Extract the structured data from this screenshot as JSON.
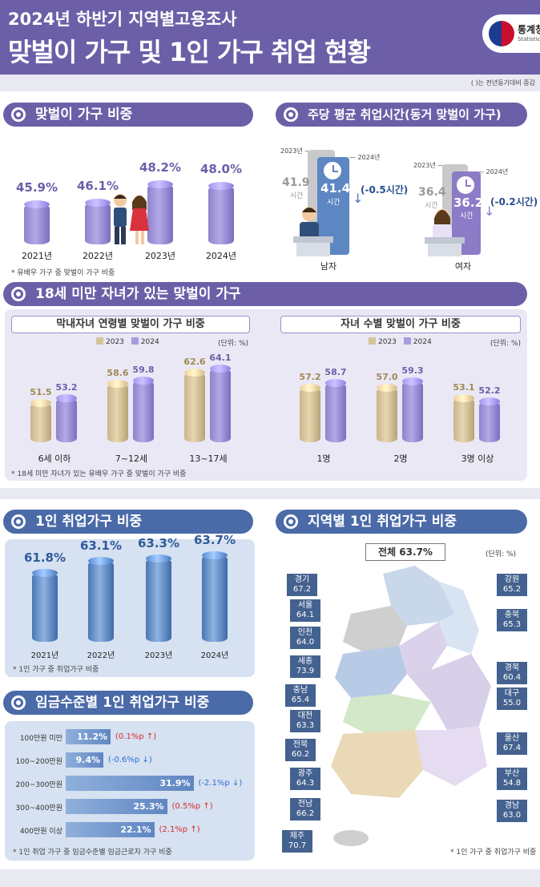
{
  "header": {
    "subtitle": "2024년 하반기 지역별고용조사",
    "title": "맞벌이 가구 및 1인 가구 취업 현황",
    "logo_text": "통계청",
    "logo_sub": "Statistics Korea",
    "note": "(  )는 전년동기대비 증감"
  },
  "dual_share": {
    "title": "맞벌이 가구 비중",
    "note": "* 유배우 가구 중 맞벌이 가구 비중",
    "chart_data": {
      "type": "bar",
      "categories": [
        "2021년",
        "2022년",
        "2023년",
        "2024년"
      ],
      "values": [
        45.9,
        46.1,
        48.2,
        48.0
      ],
      "labels": [
        "45.9%",
        "46.1%",
        "48.2%",
        "48.0%"
      ],
      "ylabel": "%"
    }
  },
  "work_hours": {
    "title": "주당 평균 취업시간(동거 맞벌이 가구)",
    "male": {
      "label": "남자",
      "y2023": "41.9",
      "y2024": "41.4",
      "unit": "시간",
      "change": "(-0.5시간)"
    },
    "female": {
      "label": "여자",
      "y2023": "36.4",
      "y2024": "36.2",
      "unit": "시간",
      "change": "(-0.2시간)"
    },
    "year_prev": "2023년",
    "year_curr": "2024년"
  },
  "kids": {
    "title": "18세 미만 자녀가 있는 맞벌이 가구",
    "age_title": "막내자녀 연령별 맞벌이 가구 비중",
    "count_title": "자녀 수별 맞벌이 가구 비중",
    "legend": [
      "2023",
      "2024"
    ],
    "unit": "(단위: %)",
    "note": "* 18세 미만 자녀가 있는 유배우 가구 중 맞벌이 가구 비중",
    "age_chart": {
      "type": "bar",
      "categories": [
        "6세 이하",
        "7~12세",
        "13~17세"
      ],
      "series": [
        {
          "name": "2023",
          "values": [
            51.5,
            58.6,
            62.6
          ]
        },
        {
          "name": "2024",
          "values": [
            53.2,
            59.8,
            64.1
          ]
        }
      ]
    },
    "count_chart": {
      "type": "bar",
      "categories": [
        "1명",
        "2명",
        "3명 이상"
      ],
      "series": [
        {
          "name": "2023",
          "values": [
            57.2,
            57.0,
            53.1
          ]
        },
        {
          "name": "2024",
          "values": [
            58.7,
            59.3,
            52.2
          ]
        }
      ]
    }
  },
  "single_share": {
    "title": "1인 취업가구 비중",
    "note": "* 1인 가구 중 취업가구 비중",
    "chart_data": {
      "type": "bar",
      "categories": [
        "2021년",
        "2022년",
        "2023년",
        "2024년"
      ],
      "values": [
        61.8,
        63.1,
        63.3,
        63.7
      ],
      "labels": [
        "61.8%",
        "63.1%",
        "63.3%",
        "63.7%"
      ]
    }
  },
  "wage": {
    "title": "임금수준별 1인 취업가구 비중",
    "note": "* 1인 취업 가구 중 임금수준별 임금근로자 가구 비중",
    "chart_data": {
      "type": "bar",
      "orientation": "horizontal",
      "categories": [
        "100만원 미만",
        "100~200만원",
        "200~300만원",
        "300~400만원",
        "400만원 이상"
      ],
      "values": [
        11.2,
        9.4,
        31.9,
        25.3,
        22.1
      ],
      "labels": [
        "11.2%",
        "9.4%",
        "31.9%",
        "25.3%",
        "22.1%"
      ],
      "changes": [
        "(0.1%p ↑)",
        "(-0.6%p ↓)",
        "(-2.1%p ↓)",
        "(0.5%p ↑)",
        "(2.1%p ↑)"
      ],
      "change_dir": [
        "up",
        "down",
        "down",
        "up",
        "up"
      ]
    }
  },
  "regional": {
    "title": "지역별 1인 취업가구 비중",
    "total": "전체 63.7%",
    "unit": "(단위: %)",
    "note": "* 1인 가구 중 취업가구 비중",
    "chart_data": {
      "type": "table",
      "regions": [
        "경기",
        "서울",
        "인천",
        "세종",
        "충남",
        "대전",
        "전북",
        "광주",
        "전남",
        "제주",
        "강원",
        "충북",
        "경북",
        "대구",
        "울산",
        "부산",
        "경남"
      ],
      "values": [
        67.2,
        64.1,
        64.0,
        73.9,
        65.4,
        63.3,
        60.2,
        64.3,
        66.2,
        70.7,
        65.2,
        65.3,
        60.4,
        55.0,
        67.4,
        54.8,
        63.0
      ],
      "labels": [
        "67.2",
        "64.1",
        "64.0",
        "73.9",
        "65.4",
        "63.3",
        "60.2",
        "64.3",
        "66.2",
        "70.7",
        "65.2",
        "65.3",
        "60.4",
        "55.0",
        "67.4",
        "54.8",
        "63.0"
      ]
    }
  },
  "colors": {
    "purple": "#6c5fa8",
    "blue": "#4a6aa8",
    "up": "#d62b2b",
    "down": "#2b6fd6"
  }
}
